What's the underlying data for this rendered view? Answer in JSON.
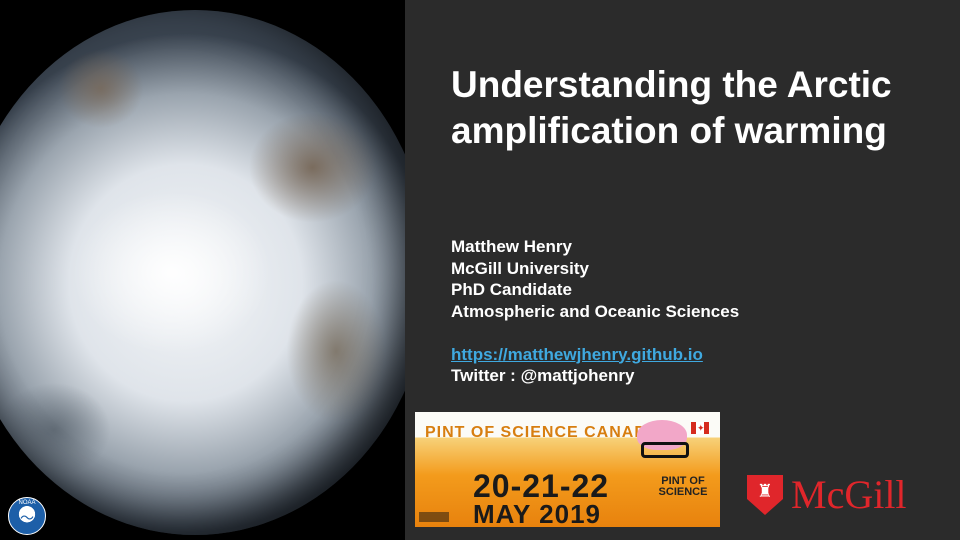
{
  "slide": {
    "title": "Understanding the Arctic amplification of warming",
    "author": "Matthew Henry",
    "institution": "McGill University",
    "position": "PhD Candidate",
    "department": "Atmospheric and Oceanic Sciences",
    "website": "https://matthewjhenry.github.io",
    "twitter": "Twitter : @mattjohenry"
  },
  "logos": {
    "noaa_label": "NOAA",
    "noaa_icon": "noaa-icon",
    "pint_title": "PINT OF SCIENCE CANADA",
    "pint_date_line1": "20-21-22",
    "pint_date_line2": "MAY 2019",
    "pint_logo_text": "PINT OF SCIENCE",
    "mcgill_text": "McGill",
    "mcgill_icon": "mcgill-shield-icon"
  },
  "colors": {
    "background_right": "#2b2b2b",
    "text": "#ffffff",
    "link": "#3fa9e0",
    "mcgill_red": "#e0262b",
    "pint_orange": "#f39b1c"
  }
}
